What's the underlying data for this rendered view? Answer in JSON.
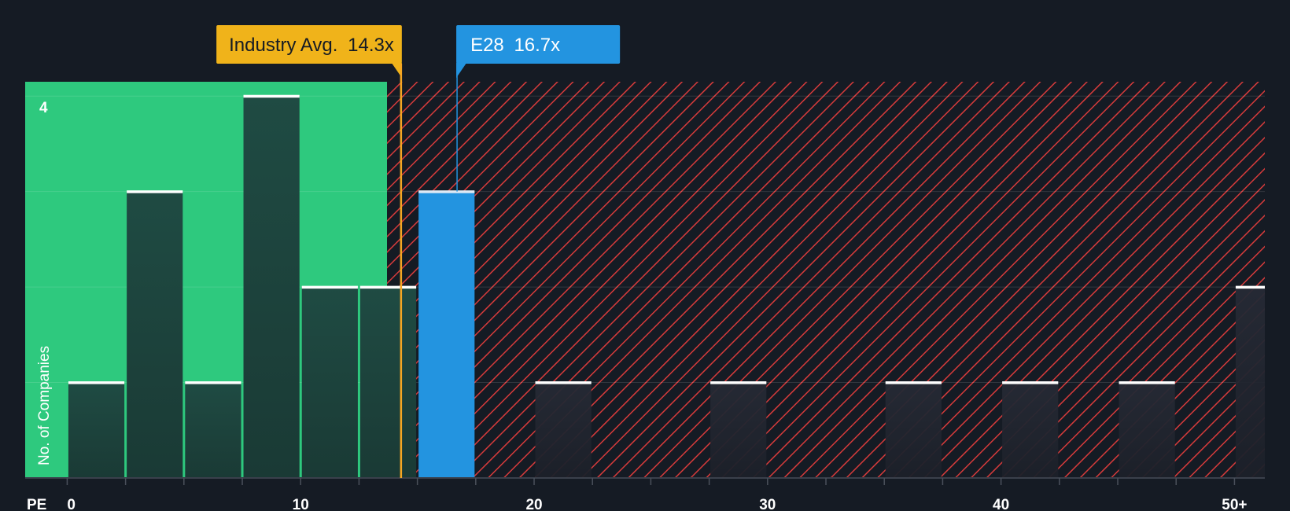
{
  "chart_data": {
    "type": "bar",
    "x_axis_name": "PE",
    "y_axis_name": "No. of Companies",
    "x_ticks": [
      {
        "value": 0,
        "label": "0"
      },
      {
        "value": 10,
        "label": "10"
      },
      {
        "value": 20,
        "label": "20"
      },
      {
        "value": 30,
        "label": "30"
      },
      {
        "value": 40,
        "label": "40"
      },
      {
        "value": 50,
        "label": "50+"
      }
    ],
    "y_ticks": [
      {
        "value": 4,
        "label": "4"
      }
    ],
    "xlim": [
      -1.8,
      51.3
    ],
    "ylim": [
      0,
      4.15
    ],
    "bins_width": 2.5,
    "bars": [
      {
        "x_start": 0,
        "x_end": 2.5,
        "value": 1
      },
      {
        "x_start": 2.5,
        "x_end": 5,
        "value": 3
      },
      {
        "x_start": 5,
        "x_end": 7.5,
        "value": 1
      },
      {
        "x_start": 7.5,
        "x_end": 10,
        "value": 4
      },
      {
        "x_start": 10,
        "x_end": 12.5,
        "value": 2
      },
      {
        "x_start": 12.5,
        "x_end": 15,
        "value": 2
      },
      {
        "x_start": 15,
        "x_end": 17.5,
        "value": 3,
        "highlight": true
      },
      {
        "x_start": 20,
        "x_end": 22.5,
        "value": 1
      },
      {
        "x_start": 27.5,
        "x_end": 30,
        "value": 1
      },
      {
        "x_start": 35,
        "x_end": 37.5,
        "value": 1
      },
      {
        "x_start": 40,
        "x_end": 42.5,
        "value": 1
      },
      {
        "x_start": 45,
        "x_end": 47.5,
        "value": 1
      },
      {
        "x_start": 50,
        "x_end": 52.5,
        "value": 2
      }
    ],
    "fair_value_boundary": 13.7,
    "industry_average": {
      "label": "Industry Avg.",
      "value_label": "14.3x",
      "value": 14.3
    },
    "company": {
      "label": "E28",
      "value_label": "16.7x",
      "value": 16.7
    },
    "colors": {
      "background": "#151b24",
      "undervalued_zone": "#2ec97e",
      "overvalued_hatch": "#d73b3b",
      "bar_fill": "#1e4a40",
      "bar_top": "#ffffff",
      "company_bar": "#2394e0",
      "industry_marker": "#f0b31a",
      "company_marker": "#2394e0"
    }
  }
}
